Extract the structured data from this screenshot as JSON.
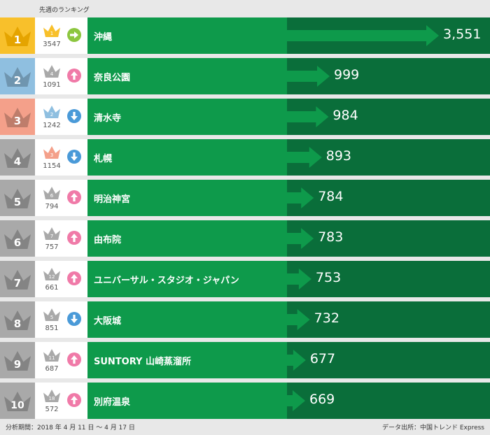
{
  "header": {
    "label": "先週のランキング"
  },
  "footer": {
    "period": "分析期間：2018 年 4 月 11 日 ～ 4 月 17 日",
    "source": "データ出所：中国トレンド Express"
  },
  "colors": {
    "rank1": "#f8c02b",
    "rank2": "#8fbfe0",
    "rank3": "#f4a08a",
    "rank_other": "#a9a9a9",
    "crown_prev1": "#f8c02b",
    "crown_prev2": "#8fbfe0",
    "crown_prev3": "#f4a08a",
    "crown_prev_other": "#a9a9a9",
    "trend_up": "#f07aa8",
    "trend_down": "#4a9ad8",
    "trend_same": "#8cc63f",
    "bar_light": "#0e9a4b",
    "bar_dark": "#0a6e3a"
  },
  "chart_data": {
    "type": "bar",
    "title": "",
    "xlabel": "",
    "ylabel": "",
    "categories": [
      "沖縄",
      "奈良公園",
      "清水寺",
      "札幌",
      "明治神宮",
      "由布院",
      "ユニバーサル・スタジオ・ジャパン",
      "大阪城",
      "SUNTORY 山崎蒸溜所",
      "別府温泉"
    ],
    "series": [
      {
        "values": [
          3551,
          999,
          984,
          893,
          784,
          783,
          753,
          732,
          677,
          669
        ]
      }
    ],
    "value_labels": [
      "3,551",
      "999",
      "984",
      "893",
      "784",
      "783",
      "753",
      "732",
      "677",
      "669"
    ]
  },
  "rows": [
    {
      "rank": "1",
      "prev_rank": "1",
      "prev_count": "3547",
      "trend": "same",
      "name": "沖縄"
    },
    {
      "rank": "2",
      "prev_rank": "4",
      "prev_count": "1091",
      "trend": "up",
      "name": "奈良公園"
    },
    {
      "rank": "3",
      "prev_rank": "2",
      "prev_count": "1242",
      "trend": "down",
      "name": "清水寺"
    },
    {
      "rank": "4",
      "prev_rank": "3",
      "prev_count": "1154",
      "trend": "down",
      "name": "札幌"
    },
    {
      "rank": "5",
      "prev_rank": "6",
      "prev_count": "794",
      "trend": "up",
      "name": "明治神宮"
    },
    {
      "rank": "6",
      "prev_rank": "7",
      "prev_count": "757",
      "trend": "up",
      "name": "由布院"
    },
    {
      "rank": "7",
      "prev_rank": "12",
      "prev_count": "661",
      "trend": "up",
      "name": "ユニバーサル・スタジオ・ジャパン"
    },
    {
      "rank": "8",
      "prev_rank": "5",
      "prev_count": "851",
      "trend": "down",
      "name": "大阪城"
    },
    {
      "rank": "9",
      "prev_rank": "11",
      "prev_count": "687",
      "trend": "up",
      "name": "SUNTORY 山崎蒸溜所"
    },
    {
      "rank": "10",
      "prev_rank": "18",
      "prev_count": "572",
      "trend": "up",
      "name": "別府温泉"
    }
  ]
}
